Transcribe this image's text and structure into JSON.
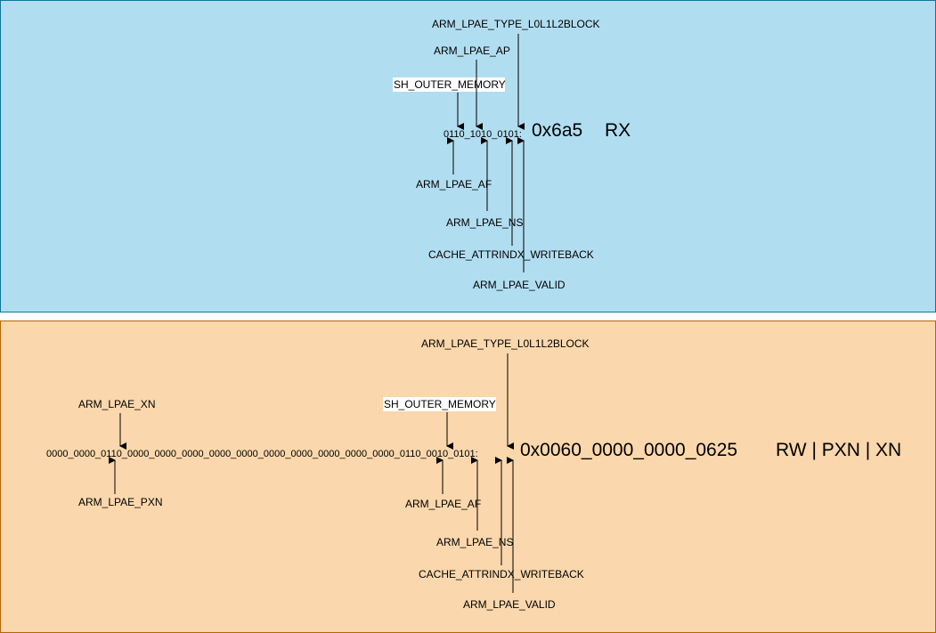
{
  "top": {
    "bits": "0110_1010_0101:",
    "hex": "0x6a5",
    "perm": "RX",
    "labels": {
      "type_block": "ARM_LPAE_TYPE_L0L1L2BLOCK",
      "ap": "ARM_LPAE_AP",
      "sh_outer": "SH_OUTER_MEMORY",
      "af": "ARM_LPAE_AF",
      "ns": "ARM_LPAE_NS",
      "cache": "CACHE_ATTRINDX_WRITEBACK",
      "valid": "ARM_LPAE_VALID"
    }
  },
  "bottom": {
    "bits": "0000_0000_0110_0000_0000_0000_0000_0000_0000_0000_0000_0000_0000_0110_0010_0101:",
    "hex": "0x0060_0000_0000_0625",
    "perm": "RW | PXN | XN",
    "labels": {
      "type_block": "ARM_LPAE_TYPE_L0L1L2BLOCK",
      "xn": "ARM_LPAE_XN",
      "sh_outer": "SH_OUTER_MEMORY",
      "pxn": "ARM_LPAE_PXN",
      "af": "ARM_LPAE_AF",
      "ns": "ARM_LPAE_NS",
      "cache": "CACHE_ATTRINDX_WRITEBACK",
      "valid": "ARM_LPAE_VALID"
    }
  },
  "colors": {
    "top_fill": "#b1ddf0",
    "top_stroke": "#10739e",
    "bottom_fill": "#fad7ac",
    "bottom_stroke": "#b46504"
  }
}
